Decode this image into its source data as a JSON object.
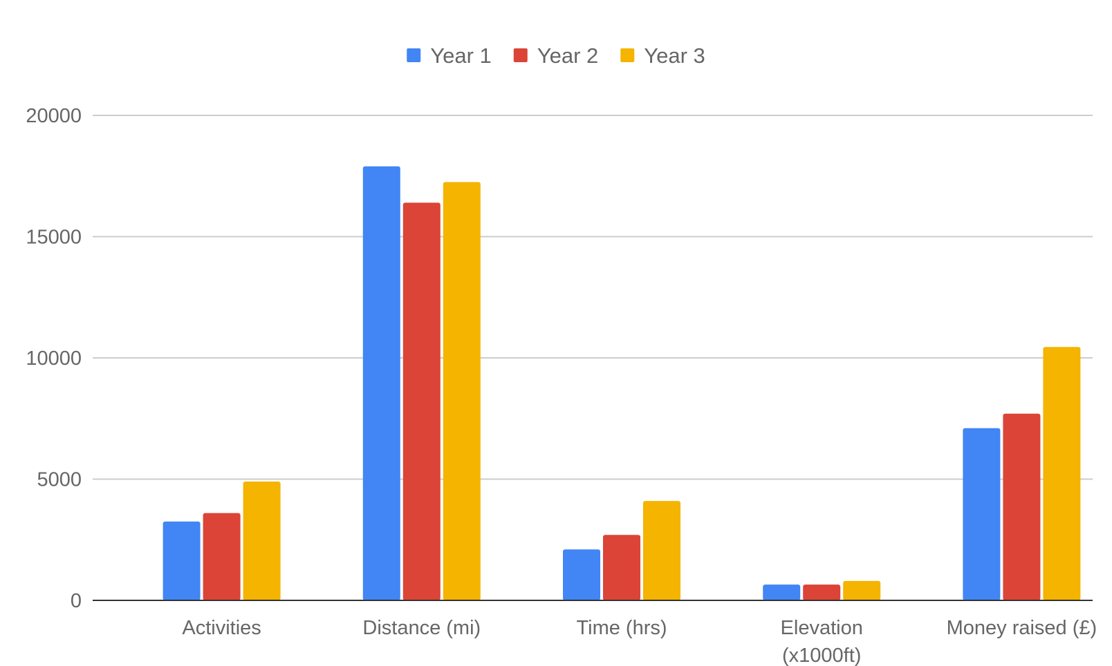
{
  "chart_data": {
    "type": "bar",
    "title": "",
    "xlabel": "",
    "ylabel": "",
    "categories": [
      [
        "Activities"
      ],
      [
        "Distance (mi)"
      ],
      [
        "Time (hrs)"
      ],
      [
        "Elevation",
        "(x1000ft)"
      ],
      [
        "Money raised (£)"
      ]
    ],
    "series": [
      {
        "name": "Year 1",
        "color": "#4285f4",
        "values": [
          3250,
          17900,
          2100,
          650,
          7100
        ]
      },
      {
        "name": "Year 2",
        "color": "#db4437",
        "values": [
          3600,
          16400,
          2700,
          650,
          7700
        ]
      },
      {
        "name": "Year 3",
        "color": "#f4b400",
        "values": [
          4900,
          17250,
          4100,
          800,
          10450
        ]
      }
    ],
    "ylim": [
      0,
      20000
    ],
    "yticks": [
      0,
      5000,
      10000,
      15000,
      20000
    ],
    "grid": true,
    "legend_position": "top-center"
  }
}
